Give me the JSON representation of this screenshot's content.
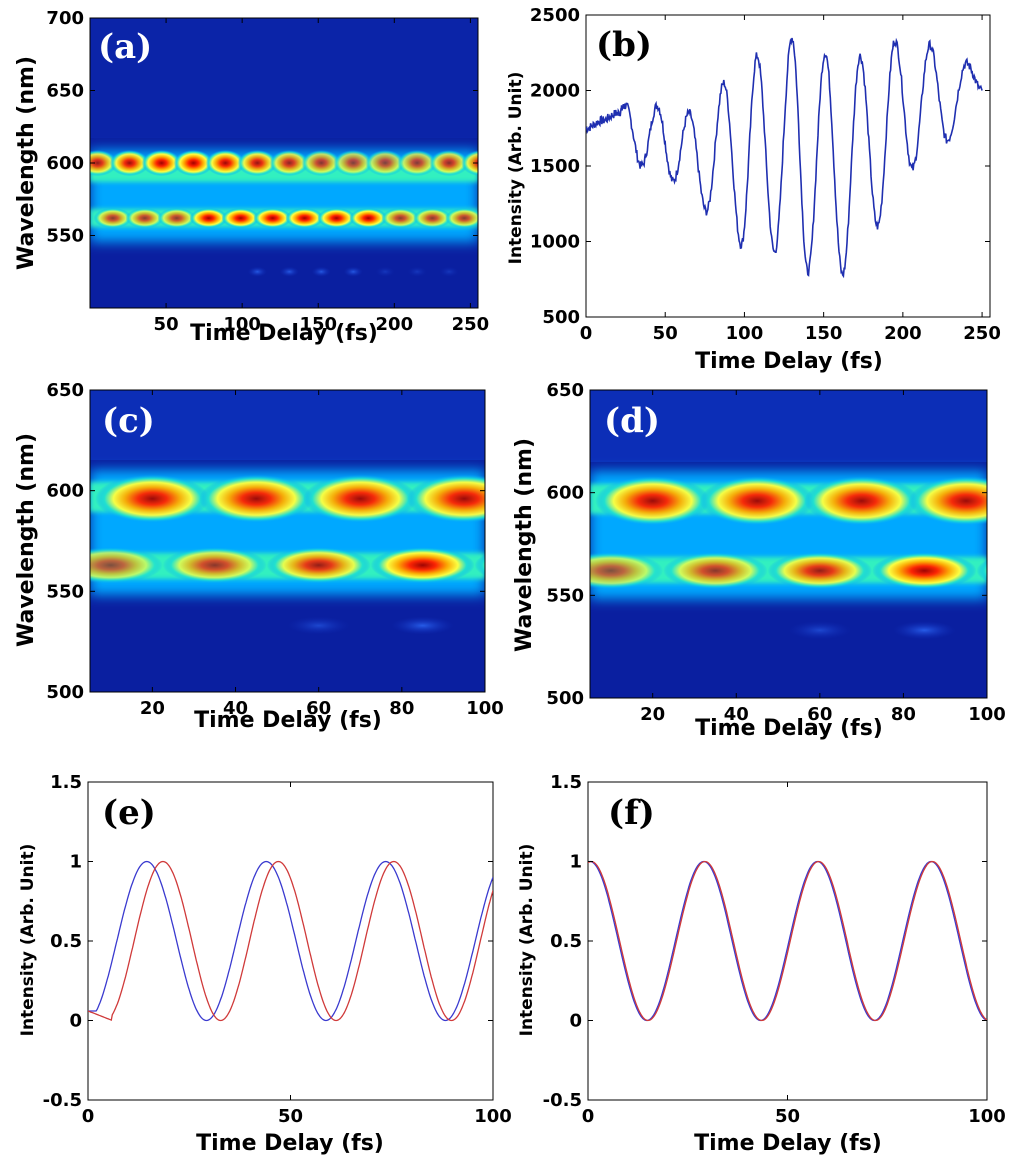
{
  "figure": {
    "colors": {
      "heatmap_background": "#0a1fa0",
      "line_b": "#1f2fb0",
      "line_blue": "#3a3acf",
      "line_red": "#d03a3a",
      "panel_letter_light": "#ffffff",
      "panel_letter_dark": "#000000"
    }
  },
  "chart_data": [
    {
      "id": "a",
      "panel_letter": "(a)",
      "type": "heatmap",
      "xlabel": "Time Delay (fs)",
      "ylabel": "Wavelength (nm)",
      "xlim": [
        0,
        255
      ],
      "ylim": [
        500,
        700
      ],
      "xticks": [
        "50",
        "100",
        "150",
        "200",
        "250"
      ],
      "xtick_values": [
        50,
        100,
        150,
        200,
        250
      ],
      "yticks": [
        "550",
        "600",
        "650",
        "700"
      ],
      "ytick_values": [
        550,
        600,
        650,
        700
      ],
      "bands_nm": [
        600,
        562,
        525
      ],
      "oscillation_period_fs": 21
    },
    {
      "id": "b",
      "panel_letter": "(b)",
      "type": "line",
      "xlabel": "Time Delay (fs)",
      "ylabel": "Intensity (Arb. Unit)",
      "xlim": [
        0,
        255
      ],
      "ylim": [
        500,
        2500
      ],
      "xticks": [
        "0",
        "50",
        "100",
        "150",
        "200",
        "250"
      ],
      "xtick_values": [
        0,
        50,
        100,
        150,
        200,
        250
      ],
      "yticks": [
        "500",
        "1000",
        "1500",
        "2000",
        "2500"
      ],
      "ytick_values": [
        500,
        1000,
        1500,
        2000,
        2500
      ],
      "series": [
        {
          "name": "intensity",
          "x": [
            0,
            10,
            20,
            25,
            35,
            45,
            55,
            65,
            76,
            87,
            98,
            108,
            119,
            130,
            140,
            151,
            162,
            173,
            184,
            195,
            206,
            217,
            228,
            240,
            250
          ],
          "y": [
            1750,
            1800,
            1850,
            1900,
            1500,
            1900,
            1400,
            1850,
            1200,
            2050,
            980,
            2230,
            930,
            2350,
            800,
            2250,
            780,
            2230,
            1100,
            2330,
            1480,
            2300,
            1670,
            2180,
            2000
          ]
        }
      ]
    },
    {
      "id": "c",
      "panel_letter": "(c)",
      "type": "heatmap",
      "xlabel": "Time Delay (fs)",
      "ylabel": "Wavelength (nm)",
      "xlim": [
        5,
        100
      ],
      "ylim": [
        500,
        650
      ],
      "xticks": [
        "20",
        "40",
        "60",
        "80",
        "100"
      ],
      "xtick_values": [
        20,
        40,
        60,
        80,
        100
      ],
      "yticks": [
        "500",
        "550",
        "600",
        "650"
      ],
      "ytick_values": [
        500,
        550,
        600,
        650
      ],
      "bands_nm": [
        596,
        563,
        533
      ],
      "oscillation_period_fs": 25
    },
    {
      "id": "d",
      "panel_letter": "(d)",
      "type": "heatmap",
      "xlabel": "Time Delay (fs)",
      "ylabel": "Wavelength (nm)",
      "xlim": [
        5,
        100
      ],
      "ylim": [
        500,
        650
      ],
      "xticks": [
        "20",
        "40",
        "60",
        "80",
        "100"
      ],
      "xtick_values": [
        20,
        40,
        60,
        80,
        100
      ],
      "yticks": [
        "500",
        "550",
        "600",
        "650"
      ],
      "ytick_values": [
        500,
        550,
        600,
        650
      ],
      "bands_nm": [
        596,
        562,
        533
      ],
      "oscillation_period_fs": 25
    },
    {
      "id": "e",
      "panel_letter": "(e)",
      "type": "line",
      "xlabel": "Time Delay (fs)",
      "ylabel": "Intensity (Arb. Unit)",
      "xlim": [
        0,
        100
      ],
      "ylim": [
        -0.5,
        1.5
      ],
      "xticks": [
        "0",
        "50",
        "100"
      ],
      "xtick_values": [
        0,
        50,
        100
      ],
      "yticks": [
        "-0.5",
        "0",
        "0.5",
        "1",
        "1.5"
      ],
      "ytick_values": [
        -0.5,
        0,
        0.5,
        1,
        1.5
      ],
      "series": [
        {
          "name": "blue",
          "color": "#3a3acf",
          "period": 29.5,
          "peak_x": 14.5
        },
        {
          "name": "red",
          "color": "#d03a3a",
          "period": 28.5,
          "peak_x": 18.5
        }
      ]
    },
    {
      "id": "f",
      "panel_letter": "(f)",
      "type": "line",
      "xlabel": "Time Delay (fs)",
      "ylabel": "Intensity (Arb. Unit)",
      "xlim": [
        0,
        100
      ],
      "ylim": [
        -0.5,
        1.5
      ],
      "xticks": [
        "0",
        "50",
        "100"
      ],
      "xtick_values": [
        0,
        50,
        100
      ],
      "yticks": [
        "-0.5",
        "0",
        "0.5",
        "1",
        "1.5"
      ],
      "ytick_values": [
        -0.5,
        0,
        0.5,
        1,
        1.5
      ],
      "series": [
        {
          "name": "blue",
          "color": "#3a3acf",
          "period": 28.5,
          "peak_x": 29
        },
        {
          "name": "red",
          "color": "#d03a3a",
          "period": 28.5,
          "peak_x": 29.3
        }
      ]
    }
  ]
}
